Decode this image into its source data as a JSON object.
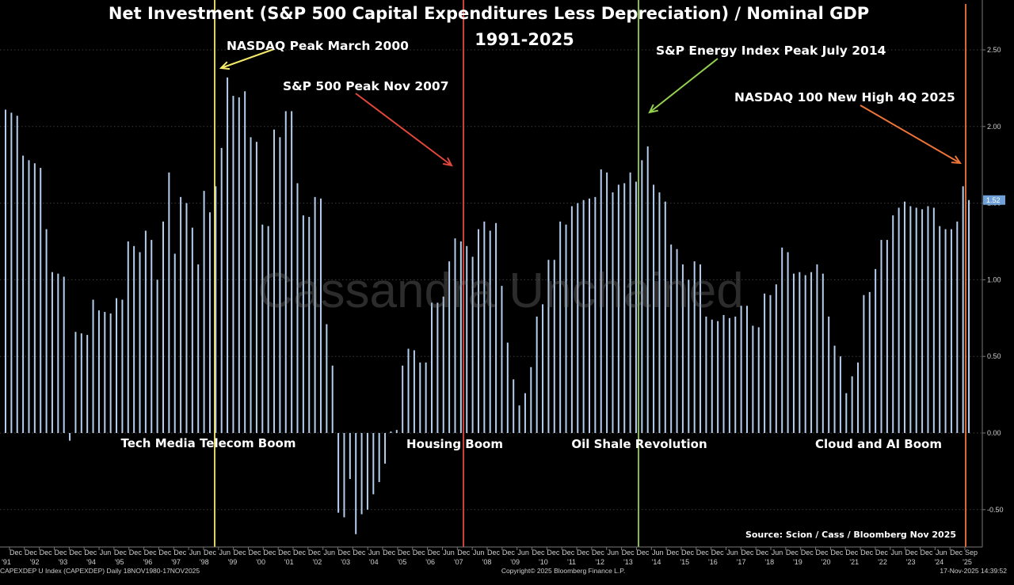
{
  "chart_data": {
    "type": "bar",
    "title": "Net Investment (S&P 500 Capital Expenditures Less Depreciation) / Nominal GDP",
    "subtitle": "1991-2025",
    "ylim": [
      -0.75,
      2.75
    ],
    "yticks": [
      -0.5,
      0.0,
      0.5,
      1.0,
      1.5,
      2.0,
      2.5
    ],
    "ytick_labels": [
      "-0.50",
      "0.00",
      "0.50",
      "1.00",
      "1.50",
      "2.00",
      "2.50"
    ],
    "last_value_label": "1.52",
    "grid": true,
    "values": [
      2.11,
      2.09,
      2.07,
      1.81,
      1.78,
      1.76,
      1.73,
      1.33,
      1.05,
      1.04,
      1.02,
      -0.05,
      0.66,
      0.65,
      0.64,
      0.87,
      0.8,
      0.79,
      0.78,
      0.88,
      0.87,
      1.25,
      1.22,
      1.18,
      1.32,
      1.26,
      1.0,
      1.38,
      1.7,
      1.17,
      1.54,
      1.5,
      1.34,
      1.1,
      1.58,
      1.44,
      1.61,
      1.86,
      2.32,
      2.2,
      2.19,
      2.23,
      1.93,
      1.9,
      1.36,
      1.35,
      1.98,
      1.93,
      2.1,
      2.1,
      1.63,
      1.42,
      1.41,
      1.54,
      1.53,
      0.71,
      0.44,
      -0.52,
      -0.55,
      -0.3,
      -0.66,
      -0.53,
      -0.5,
      -0.4,
      -0.32,
      -0.2,
      0.01,
      0.02,
      0.44,
      0.55,
      0.54,
      0.46,
      0.46,
      0.85,
      0.85,
      0.89,
      1.12,
      1.27,
      1.25,
      1.22,
      1.15,
      1.33,
      1.38,
      1.32,
      1.37,
      0.96,
      0.59,
      0.35,
      0.18,
      0.26,
      0.43,
      0.76,
      0.84,
      1.13,
      1.13,
      1.38,
      1.36,
      1.48,
      1.5,
      1.52,
      1.53,
      1.54,
      1.72,
      1.7,
      1.57,
      1.62,
      1.63,
      1.7,
      1.64,
      1.78,
      1.87,
      1.62,
      1.57,
      1.51,
      1.23,
      1.2,
      1.1,
      1.0,
      1.12,
      1.1,
      0.76,
      0.74,
      0.73,
      0.77,
      0.75,
      0.76,
      0.83,
      0.83,
      0.7,
      0.69,
      0.91,
      0.9,
      0.97,
      1.21,
      1.18,
      1.04,
      1.05,
      1.03,
      1.05,
      1.1,
      1.04,
      0.76,
      0.57,
      0.5,
      0.26,
      0.37,
      0.46,
      0.9,
      0.92,
      1.07,
      1.26,
      1.26,
      1.42,
      1.47,
      1.51,
      1.48,
      1.47,
      1.46,
      1.48,
      1.47,
      1.35,
      1.33,
      1.33,
      1.38,
      1.61,
      1.52
    ],
    "x_tick_labels": [
      "Dec",
      "Dec",
      "Dec",
      "Dec",
      "Dec",
      "Dec",
      "Jun",
      "Dec",
      "Dec",
      "Dec",
      "Dec",
      "Dec",
      "Jun",
      "Dec",
      "Jun",
      "Dec",
      "Dec",
      "Dec",
      "Dec",
      "Dec",
      "Dec",
      "Jun",
      "Dec",
      "Dec",
      "Jun",
      "Dec",
      "Dec",
      "Dec",
      "Dec",
      "Jun",
      "Dec",
      "Jun",
      "Dec",
      "Dec",
      "Jun",
      "Dec",
      "Dec",
      "Dec",
      "Dec",
      "Dec",
      "Jun",
      "Dec",
      "Dec",
      "Jun",
      "Dec",
      "Dec",
      "Dec",
      "Dec",
      "Jun",
      "Dec",
      "Dec",
      "Jun",
      "Dec",
      "Dec",
      "Dec",
      "Dec",
      "Dec",
      "Dec",
      "Dec",
      "Jun",
      "Dec",
      "Dec",
      "Jun",
      "Dec",
      "Sep"
    ],
    "year_labels": [
      "'91",
      "'92",
      "'93",
      "'94",
      "'95",
      "'96",
      "'97",
      "'98",
      "'99",
      "'00",
      "'01",
      "'02",
      "'03",
      "'04",
      "'05",
      "'06",
      "'07",
      "'08",
      "'09",
      "'10",
      "'11",
      "'12",
      "'13",
      "'14",
      "'15",
      "'16",
      "'17",
      "'18",
      "'19",
      "'20",
      "'21",
      "'22",
      "'23",
      "'24",
      "'25"
    ],
    "event_lines": [
      {
        "label": "NASDAQ Peak March 2000",
        "color": "#f3ea6c"
      },
      {
        "label": "S&P 500 Peak Nov 2007",
        "color": "#e0473b"
      },
      {
        "label": "S&P Energy Index Peak July 2014",
        "color": "#92d050"
      },
      {
        "label": "NASDAQ 100 New High 4Q 2025",
        "color": "#ee7438"
      }
    ],
    "eras": [
      "Tech Media Telecom Boom",
      "Housing Boom",
      "Oil Shale Revolution",
      "Cloud and AI Boom"
    ],
    "bar_color": "#b4cdec",
    "source": "Source: Scion / Cass / Bloomberg Nov 2025"
  },
  "watermark": "Cassandra Unchained",
  "footer": {
    "left": "CAPEXDEP U Index (CAPEXDEP) Daily 18NOV1980-17NOV2025",
    "center": "Copyright© 2025 Bloomberg Finance L.P.",
    "right": "17-Nov-2025 14:39:52"
  }
}
